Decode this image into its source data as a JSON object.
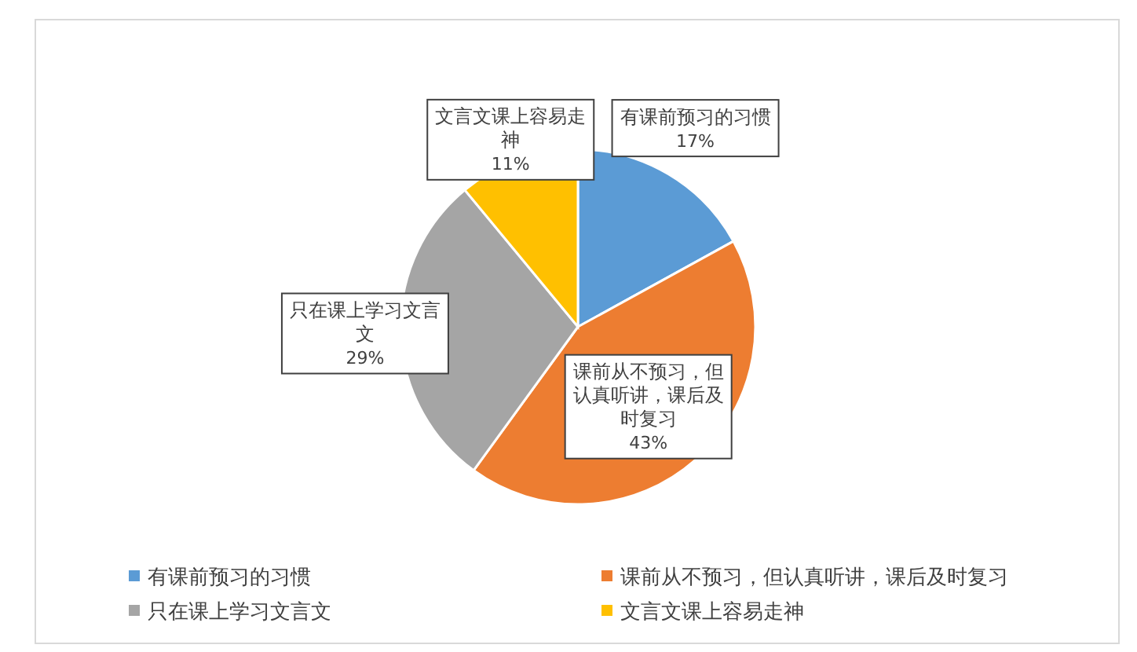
{
  "chart_data": {
    "type": "pie",
    "categories": [
      "有课前预习的习惯",
      "课前从不预习，但认真听讲，课后及时复习",
      "只在课上学习文言文",
      "文言文课上容易走神"
    ],
    "values": [
      17,
      43,
      29,
      11
    ],
    "colors": [
      "#5b9bd5",
      "#ed7d31",
      "#a5a5a5",
      "#ffc000"
    ],
    "value_labels": [
      "17%",
      "43%",
      "29%",
      "11%"
    ],
    "legend": "bottom"
  }
}
